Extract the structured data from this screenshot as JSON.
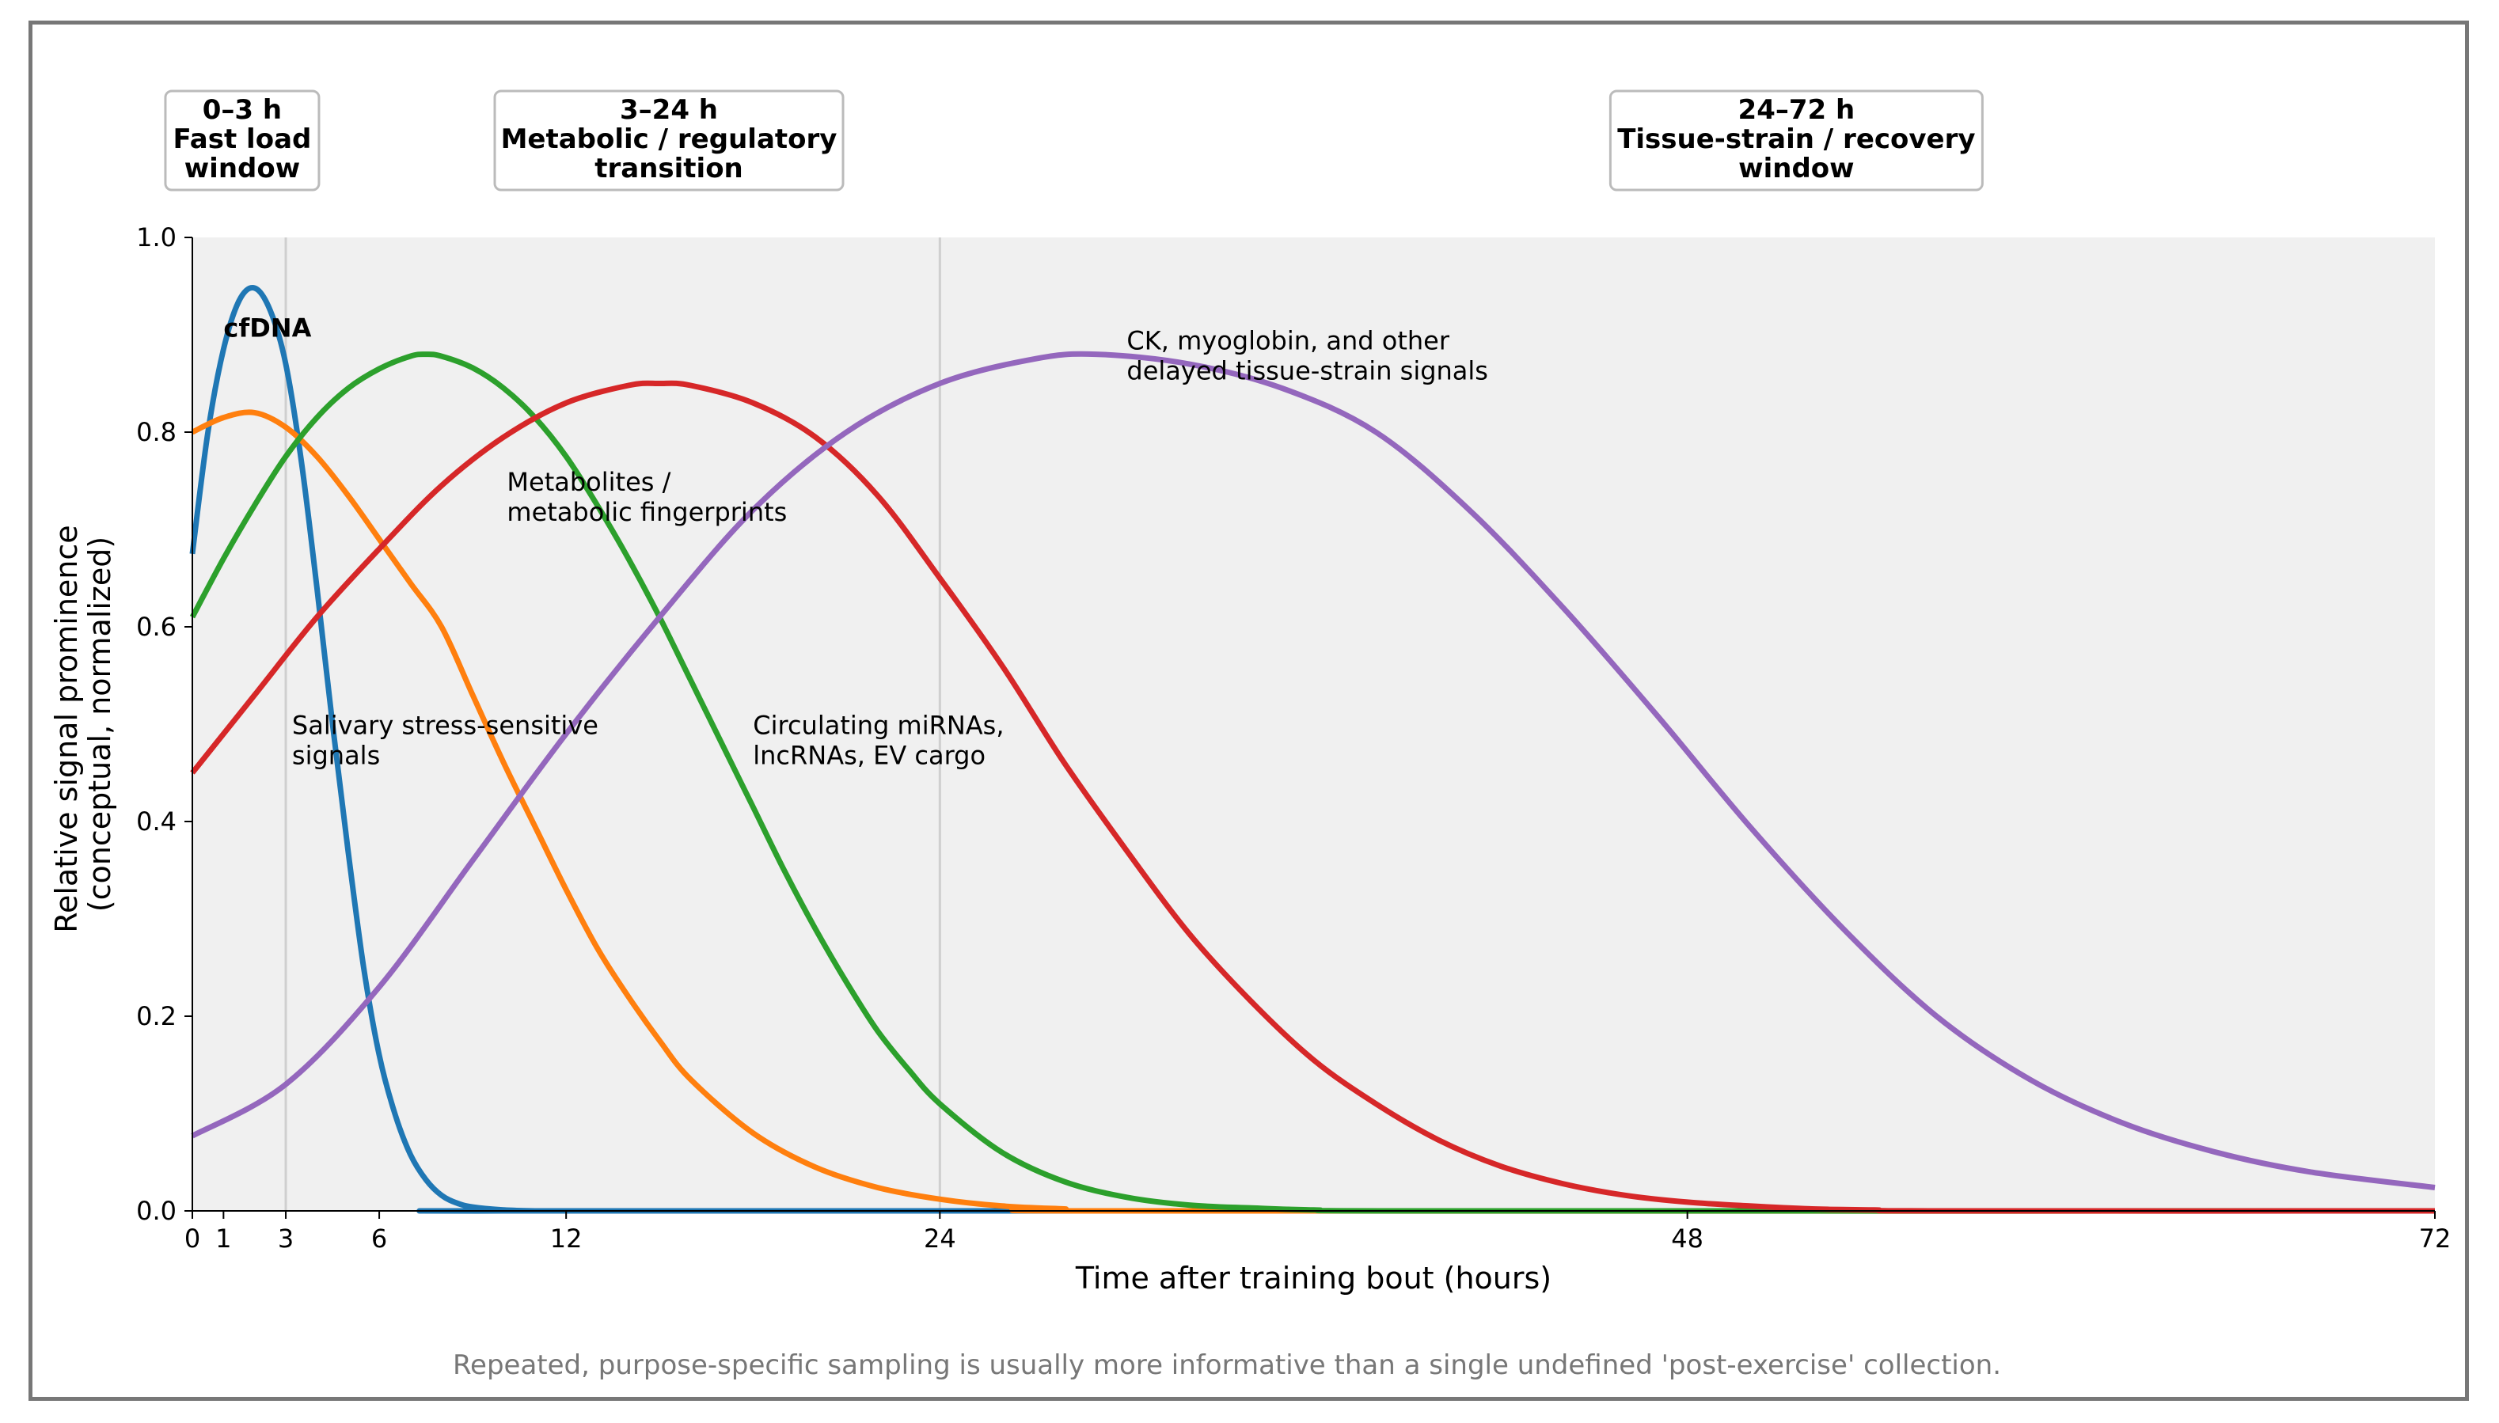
{
  "chart_data": {
    "type": "line",
    "xlabel": "Time after training bout (hours)",
    "ylabel_lines": [
      "Relative signal prominence",
      "(conceptual, normalized)"
    ],
    "xlim": [
      0,
      72
    ],
    "ylim": [
      0,
      1.0
    ],
    "xticks": [
      0,
      1,
      3,
      6,
      12,
      24,
      48,
      72
    ],
    "yticks": [
      0.0,
      0.2,
      0.4,
      0.6,
      0.8,
      1.0
    ],
    "ytick_labels": [
      "0.0",
      "0.2",
      "0.4",
      "0.6",
      "0.8",
      "1.0"
    ],
    "vlines": [
      3,
      24
    ],
    "background": "#f0f0f0",
    "windows": [
      {
        "lines": [
          "0–3 h",
          "Fast load",
          "window"
        ],
        "x_center": 1.6
      },
      {
        "lines": [
          "3–24 h",
          "Metabolic / regulatory",
          "transition"
        ],
        "x_center": 15.3
      },
      {
        "lines": [
          "24–72 h",
          "Tissue-strain / recovery",
          "window"
        ],
        "x_center": 51.5
      }
    ],
    "series": [
      {
        "color": "#1f77b4",
        "label_lines": [
          "cfDNA"
        ],
        "label_bold": true,
        "label_x": 1.0,
        "label_y": 0.898,
        "x": [
          0,
          0.5,
          1,
          1.5,
          2,
          2.5,
          3,
          3.5,
          4,
          4.5,
          5,
          5.5,
          6,
          6.5,
          7,
          7.5,
          8,
          8.5,
          9,
          10,
          11,
          12,
          72
        ],
        "y": [
          0.675,
          0.8,
          0.885,
          0.935,
          0.948,
          0.925,
          0.87,
          0.77,
          0.64,
          0.5,
          0.37,
          0.25,
          0.16,
          0.1,
          0.058,
          0.032,
          0.016,
          0.008,
          0.004,
          0.001,
          0.0,
          0.0,
          0.0
        ]
      },
      {
        "color": "#ff7f0e",
        "label_lines": [
          "Salivary stress-sensitive",
          "signals"
        ],
        "label_bold": false,
        "label_x": 3.2,
        "label_y": 0.49,
        "x": [
          0,
          1,
          2,
          3,
          4,
          5,
          6,
          7,
          8,
          9,
          10,
          11,
          12,
          13,
          14,
          15,
          16,
          18,
          20,
          22,
          24,
          26,
          28,
          30,
          72
        ],
        "y": [
          0.8,
          0.815,
          0.82,
          0.805,
          0.775,
          0.735,
          0.69,
          0.645,
          0.6,
          0.53,
          0.46,
          0.395,
          0.33,
          0.27,
          0.22,
          0.175,
          0.135,
          0.08,
          0.045,
          0.024,
          0.012,
          0.005,
          0.002,
          0.0,
          0.0
        ]
      },
      {
        "color": "#2ca02c",
        "label_lines": [
          "Metabolites /",
          "metabolic fingerprints"
        ],
        "label_bold": false,
        "label_x": 10.1,
        "label_y": 0.74,
        "x": [
          0,
          1,
          2,
          3,
          4,
          5,
          6,
          7,
          7.5,
          8,
          9,
          10,
          11,
          12,
          13,
          14,
          15,
          16,
          17,
          18,
          19,
          20,
          21,
          22,
          23,
          24,
          26,
          28,
          30,
          32,
          34,
          36,
          40,
          72
        ],
        "y": [
          0.61,
          0.67,
          0.725,
          0.775,
          0.815,
          0.845,
          0.865,
          0.878,
          0.88,
          0.878,
          0.866,
          0.845,
          0.815,
          0.775,
          0.725,
          0.67,
          0.61,
          0.545,
          0.48,
          0.415,
          0.35,
          0.29,
          0.235,
          0.185,
          0.145,
          0.11,
          0.06,
          0.03,
          0.014,
          0.006,
          0.003,
          0.001,
          0.0,
          0.0
        ]
      },
      {
        "color": "#d62728",
        "label_lines": [
          "Circulating miRNAs,",
          "lncRNAs, EV cargo"
        ],
        "label_bold": false,
        "label_x": 18.0,
        "label_y": 0.49,
        "x": [
          0,
          2,
          4,
          6,
          8,
          10,
          12,
          14,
          15,
          16,
          18,
          20,
          22,
          24,
          26,
          28,
          30,
          32,
          34,
          36,
          38,
          40,
          42,
          44,
          46,
          48,
          50,
          52,
          54,
          56,
          72
        ],
        "y": [
          0.45,
          0.53,
          0.61,
          0.68,
          0.745,
          0.795,
          0.83,
          0.848,
          0.85,
          0.848,
          0.83,
          0.795,
          0.735,
          0.65,
          0.56,
          0.46,
          0.37,
          0.285,
          0.215,
          0.155,
          0.11,
          0.073,
          0.046,
          0.028,
          0.016,
          0.009,
          0.005,
          0.002,
          0.001,
          0.0,
          0.0
        ]
      },
      {
        "color": "#9467bd",
        "label_lines": [
          "CK, myoglobin, and other",
          "delayed tissue-strain signals"
        ],
        "label_bold": false,
        "label_x": 30.0,
        "label_y": 0.885,
        "x": [
          0,
          3,
          6,
          9,
          12,
          15,
          18,
          21,
          24,
          27,
          29,
          32,
          35,
          38,
          41,
          44,
          47,
          50,
          53,
          56,
          59,
          62,
          65,
          68,
          72
        ],
        "y": [
          0.077,
          0.13,
          0.23,
          0.36,
          0.49,
          0.61,
          0.72,
          0.8,
          0.85,
          0.875,
          0.88,
          0.87,
          0.845,
          0.8,
          0.72,
          0.62,
          0.51,
          0.395,
          0.29,
          0.2,
          0.135,
          0.09,
          0.06,
          0.04,
          0.024
        ]
      }
    ],
    "footnote": "Repeated, purpose-specific sampling is usually more informative than a single undefined 'post-exercise' collection."
  }
}
